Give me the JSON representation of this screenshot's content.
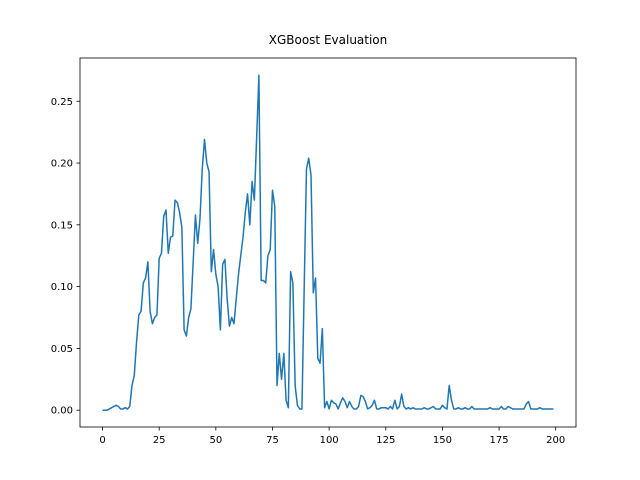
{
  "chart_data": {
    "type": "line",
    "title": "XGBoost Evaluation",
    "x": [
      0,
      1,
      2,
      3,
      4,
      5,
      6,
      7,
      8,
      9,
      10,
      11,
      12,
      13,
      14,
      15,
      16,
      17,
      18,
      19,
      20,
      21,
      22,
      23,
      24,
      25,
      26,
      27,
      28,
      29,
      30,
      31,
      32,
      33,
      34,
      35,
      36,
      37,
      38,
      39,
      40,
      41,
      42,
      43,
      44,
      45,
      46,
      47,
      48,
      49,
      50,
      51,
      52,
      53,
      54,
      55,
      56,
      57,
      58,
      59,
      60,
      61,
      62,
      63,
      64,
      65,
      66,
      67,
      68,
      69,
      70,
      71,
      72,
      73,
      74,
      75,
      76,
      77,
      78,
      79,
      80,
      81,
      82,
      83,
      84,
      85,
      86,
      87,
      88,
      89,
      90,
      91,
      92,
      93,
      94,
      95,
      96,
      97,
      98,
      99,
      100,
      101,
      102,
      103,
      104,
      105,
      106,
      107,
      108,
      109,
      110,
      111,
      112,
      113,
      114,
      115,
      116,
      117,
      118,
      119,
      120,
      121,
      122,
      123,
      124,
      125,
      126,
      127,
      128,
      129,
      130,
      131,
      132,
      133,
      134,
      135,
      136,
      137,
      138,
      139,
      140,
      141,
      142,
      143,
      144,
      145,
      146,
      147,
      148,
      149,
      150,
      151,
      152,
      153,
      154,
      155,
      156,
      157,
      158,
      159,
      160,
      161,
      162,
      163,
      164,
      165,
      166,
      167,
      168,
      169,
      170,
      171,
      172,
      173,
      174,
      175,
      176,
      177,
      178,
      179,
      180,
      181,
      182,
      183,
      184,
      185,
      186,
      187,
      188,
      189,
      190,
      191,
      192,
      193,
      194,
      195,
      196,
      197,
      198,
      199
    ],
    "series": [
      {
        "color": "#1f77b4",
        "values": [
          0,
          0,
          0,
          0.001,
          0.002,
          0.003,
          0.004,
          0.003,
          0.001,
          0.001,
          0.002,
          0.001,
          0.003,
          0.02,
          0.028,
          0.055,
          0.077,
          0.08,
          0.103,
          0.107,
          0.12,
          0.08,
          0.07,
          0.075,
          0.077,
          0.123,
          0.127,
          0.157,
          0.162,
          0.127,
          0.14,
          0.141,
          0.17,
          0.168,
          0.16,
          0.148,
          0.065,
          0.06,
          0.075,
          0.082,
          0.12,
          0.158,
          0.135,
          0.155,
          0.195,
          0.219,
          0.2,
          0.193,
          0.112,
          0.13,
          0.11,
          0.1,
          0.065,
          0.118,
          0.122,
          0.09,
          0.068,
          0.075,
          0.07,
          0.09,
          0.11,
          0.125,
          0.14,
          0.16,
          0.175,
          0.15,
          0.185,
          0.17,
          0.22,
          0.271,
          0.105,
          0.105,
          0.103,
          0.125,
          0.13,
          0.178,
          0.165,
          0.02,
          0.046,
          0.025,
          0.046,
          0.008,
          0.002,
          0.112,
          0.103,
          0.02,
          0.004,
          0.001,
          0.001,
          0.1,
          0.195,
          0.204,
          0.19,
          0.095,
          0.107,
          0.042,
          0.038,
          0.066,
          0.002,
          0.007,
          0.001,
          0.008,
          0.006,
          0.005,
          0.001,
          0.006,
          0.01,
          0.007,
          0.002,
          0.007,
          0.003,
          0.001,
          0.001,
          0.003,
          0.012,
          0.011,
          0.007,
          0.001,
          0.002,
          0.004,
          0.008,
          0.001,
          0.001,
          0.002,
          0.002,
          0.002,
          0.001,
          0.003,
          0.001,
          0.008,
          0.001,
          0.003,
          0.013,
          0.003,
          0.001,
          0.002,
          0.001,
          0.002,
          0.001,
          0.001,
          0.001,
          0.001,
          0.002,
          0.001,
          0.001,
          0.002,
          0.003,
          0.001,
          0.001,
          0.001,
          0.004,
          0.002,
          0.001,
          0.02,
          0.008,
          0.001,
          0.001,
          0.002,
          0.001,
          0.001,
          0.002,
          0.001,
          0.001,
          0.003,
          0.001,
          0.001,
          0.001,
          0.001,
          0.001,
          0.001,
          0.001,
          0.002,
          0.001,
          0.001,
          0.001,
          0.001,
          0.003,
          0.001,
          0.001,
          0.003,
          0.002,
          0.001,
          0.001,
          0.001,
          0.001,
          0.001,
          0.001,
          0.005,
          0.007,
          0.001,
          0.001,
          0.001,
          0.001,
          0.002,
          0.001,
          0.001,
          0.001,
          0.001,
          0.001,
          0.001
        ]
      }
    ],
    "xlim": [
      -9.95,
      208.95
    ],
    "xticks": [
      0,
      25,
      50,
      75,
      100,
      125,
      150,
      175,
      200
    ],
    "ylim": [
      -0.0136,
      0.285
    ],
    "yticks": [
      {
        "value": 0,
        "label": "0.00"
      },
      {
        "value": 0.05,
        "label": "0.05"
      },
      {
        "value": 0.1,
        "label": "0.10"
      },
      {
        "value": 0.15,
        "label": "0.15"
      },
      {
        "value": 0.2,
        "label": "0.20"
      },
      {
        "value": 0.25,
        "label": "0.25"
      }
    ],
    "grid": false
  }
}
